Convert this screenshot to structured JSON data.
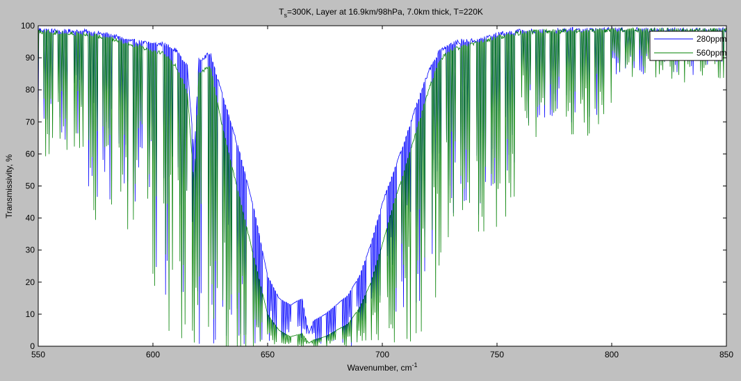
{
  "chart_data": {
    "type": "line",
    "title_main_prefix": "T",
    "title_sub": "s",
    "title_main_rest": "=300K, Layer at 16.9km/98hPa, 7.0km thick, T=220K",
    "xlabel_prefix": "Wavenumber, cm",
    "xlabel_sup": "-1",
    "ylabel": "Transmissivity, %",
    "xlim": [
      550,
      850
    ],
    "ylim": [
      0,
      100
    ],
    "x_ticks": [
      "550",
      "600",
      "650",
      "700",
      "750",
      "800",
      "850"
    ],
    "y_ticks": [
      "0",
      "10",
      "20",
      "30",
      "40",
      "50",
      "60",
      "70",
      "80",
      "90",
      "100"
    ],
    "legend_position": "top-right",
    "grid": false,
    "series": [
      {
        "name": "280ppm",
        "color": "#0000ff",
        "envelope": {
          "wavenumber": [
            550,
            560,
            570,
            580,
            590,
            600,
            605,
            610,
            615,
            618,
            620,
            625,
            630,
            635,
            640,
            645,
            650,
            655,
            660,
            665,
            668,
            670,
            675,
            680,
            685,
            690,
            695,
            700,
            705,
            710,
            715,
            720,
            725,
            730,
            735,
            740,
            745,
            750,
            760,
            770,
            780,
            800,
            820,
            850
          ],
          "max_transmissivity": [
            99.5,
            99,
            99,
            98,
            96,
            95,
            95,
            93,
            88,
            60,
            90,
            92,
            80,
            68,
            55,
            40,
            22,
            15,
            13,
            15,
            4,
            8,
            10,
            13,
            16,
            22,
            32,
            45,
            55,
            65,
            76,
            86,
            93,
            95,
            96,
            96,
            97,
            98,
            99,
            99,
            99.5,
            99.5,
            99.5,
            99.5
          ]
        }
      },
      {
        "name": "560ppm",
        "color": "#008000",
        "envelope": {
          "wavenumber": [
            550,
            560,
            570,
            580,
            590,
            600,
            605,
            610,
            615,
            618,
            620,
            625,
            630,
            635,
            640,
            645,
            650,
            655,
            660,
            665,
            668,
            670,
            675,
            680,
            685,
            690,
            695,
            700,
            705,
            710,
            715,
            720,
            725,
            730,
            735,
            740,
            745,
            750,
            760,
            770,
            780,
            800,
            820,
            850
          ],
          "max_transmissivity": [
            99,
            98.5,
            98,
            97,
            95,
            93,
            92,
            88,
            80,
            50,
            86,
            88,
            70,
            55,
            40,
            25,
            10,
            5,
            3,
            4,
            1,
            2,
            3,
            5,
            7,
            12,
            20,
            32,
            45,
            56,
            68,
            80,
            90,
            93,
            94,
            95,
            96,
            97,
            98.5,
            99,
            99,
            99.3,
            99.3,
            99.3
          ]
        }
      }
    ]
  }
}
